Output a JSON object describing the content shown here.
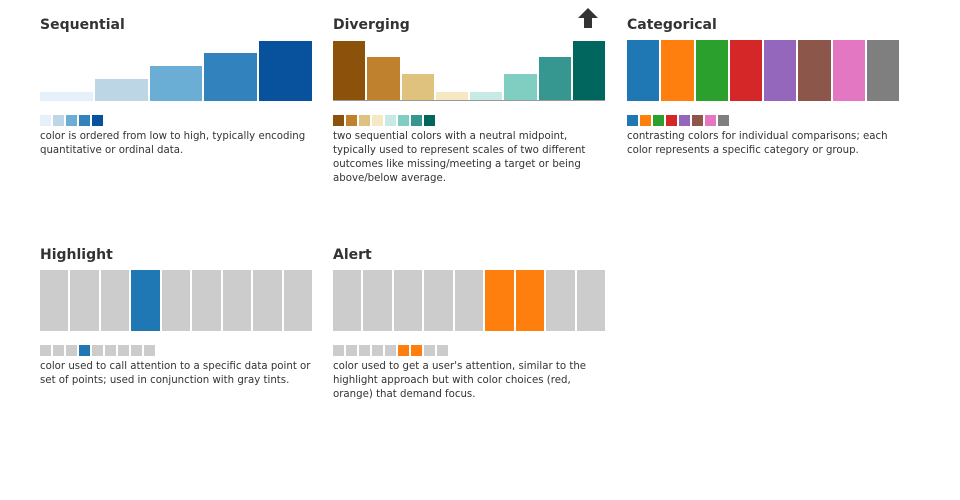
{
  "palettes": [
    {
      "id": "sequential",
      "title": "Sequential",
      "type": "graded",
      "colors": [
        "#e6f0fa",
        "#bcd6e6",
        "#6aaed6",
        "#3182bd",
        "#08519c"
      ],
      "values": [
        0.15,
        0.37,
        0.58,
        0.8,
        1.0
      ],
      "baseline": false,
      "has_arrow": false,
      "description": "color is ordered from low to high, typically encoding quantitative or ordinal data."
    },
    {
      "id": "diverging",
      "title": "Diverging",
      "type": "graded",
      "colors": [
        "#8c510a",
        "#bf812d",
        "#dfc27d",
        "#f6e8c3",
        "#c7eae5",
        "#80cdc1",
        "#35978f",
        "#01665e"
      ],
      "values": [
        1.0,
        0.73,
        0.45,
        0.15,
        0.15,
        0.45,
        0.73,
        1.0
      ],
      "baseline": true,
      "has_arrow": true,
      "description": "two sequential colors with a neutral midpoint, typically used to represent scales of two different outcomes like missing/meeting a target or being above/below average."
    },
    {
      "id": "categorical",
      "title": "Categorical",
      "type": "full",
      "colors": [
        "#1f77b4",
        "#ff7f0e",
        "#2ca02c",
        "#d62728",
        "#9467bd",
        "#8c564b",
        "#e377c2",
        "#7f7f7f"
      ],
      "baseline": false,
      "has_arrow": false,
      "description": "contrasting colors for individual comparisons; each color represents a specific category or group."
    },
    {
      "id": "highlight",
      "title": "Highlight",
      "type": "full",
      "colors": [
        "#cccccc",
        "#cccccc",
        "#cccccc",
        "#1f77b4",
        "#cccccc",
        "#cccccc",
        "#cccccc",
        "#cccccc",
        "#cccccc"
      ],
      "baseline": false,
      "has_arrow": false,
      "description": "color used to call attention to a specific data point or set of points; used in conjunction with gray tints."
    },
    {
      "id": "alert",
      "title": "Alert",
      "type": "full",
      "colors": [
        "#cccccc",
        "#cccccc",
        "#cccccc",
        "#cccccc",
        "#cccccc",
        "#ff7f0e",
        "#ff7f0e",
        "#cccccc",
        "#cccccc"
      ],
      "baseline": false,
      "has_arrow": false,
      "description": "color used to get a user's attention, similar to the highlight approach but with color choices (red, orange) that demand focus."
    }
  ],
  "icons": {
    "arrow": "up-arrow-icon"
  }
}
